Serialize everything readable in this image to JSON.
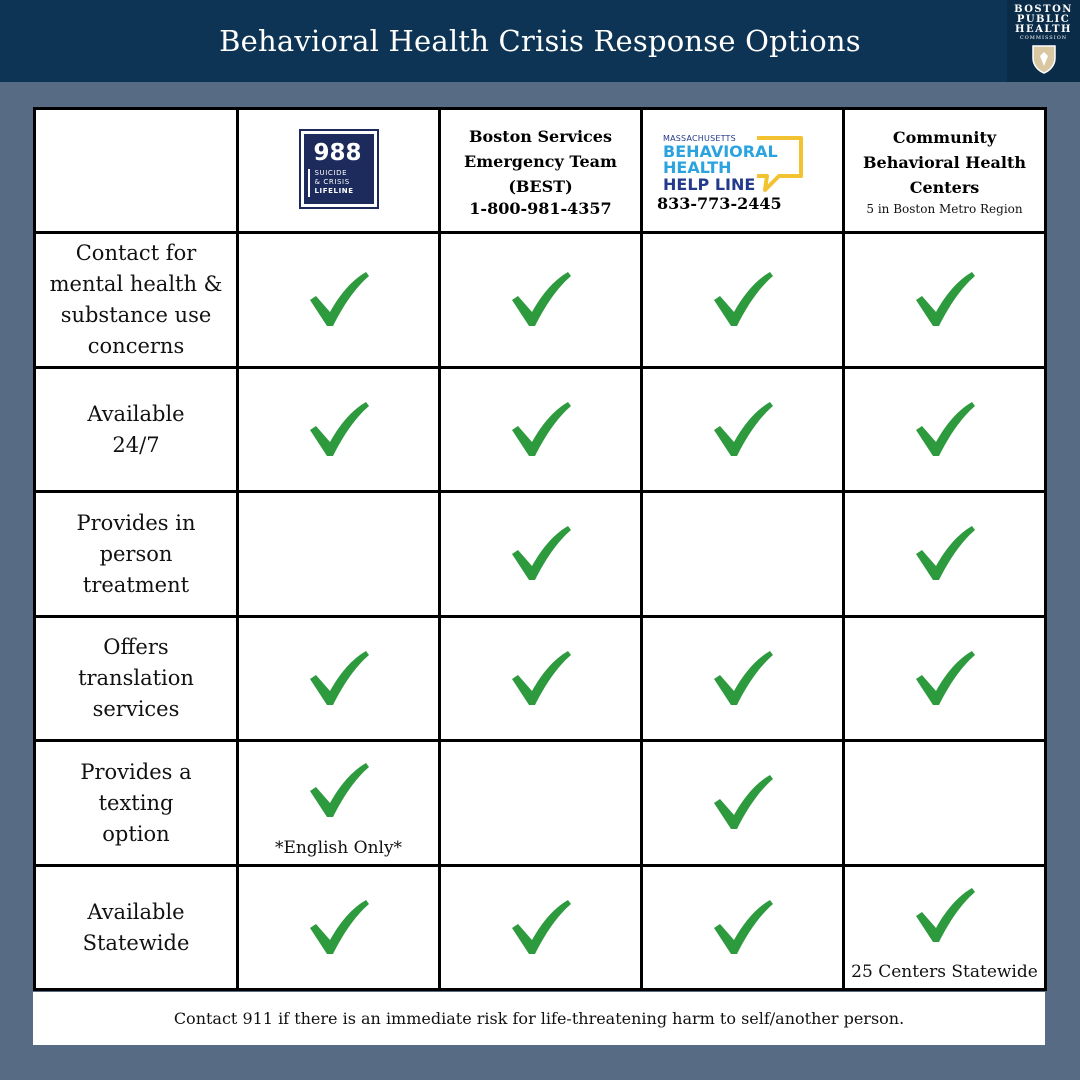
{
  "header": {
    "title": "Behavioral Health Crisis Response Options",
    "logo_lines": [
      "BOSTON",
      "PUBLIC",
      "HEALTH",
      "COMMISSION"
    ]
  },
  "columns": [
    {
      "key": "988",
      "logo": {
        "number": "988",
        "line1": "SUICIDE",
        "line2": "& CRISIS",
        "line3": "LIFELINE"
      }
    },
    {
      "key": "best",
      "title": "Boston Services\nEmergency Team\n(BEST)",
      "phone": "1-800-981-4357"
    },
    {
      "key": "mbhhl",
      "logo": {
        "state": "MASSACHUSETTS",
        "line1": "BEHAVIORAL",
        "line2": "HEALTH",
        "line3": "HELP LINE"
      },
      "phone": "833-773-2445"
    },
    {
      "key": "cbhc",
      "title": "Community\nBehavioral Health\nCenters",
      "subtitle": "5 in Boston Metro Region"
    }
  ],
  "rows": [
    {
      "label": "Contact for\nmental health &\nsubstance use\nconcerns",
      "checks": [
        true,
        true,
        true,
        true
      ],
      "notes": [
        "",
        "",
        "",
        ""
      ]
    },
    {
      "label": "Available\n24/7",
      "checks": [
        true,
        true,
        true,
        true
      ],
      "notes": [
        "",
        "",
        "",
        ""
      ]
    },
    {
      "label": "Provides in\nperson\ntreatment",
      "checks": [
        false,
        true,
        false,
        true
      ],
      "notes": [
        "",
        "",
        "",
        ""
      ]
    },
    {
      "label": "Offers\ntranslation\nservices",
      "checks": [
        true,
        true,
        true,
        true
      ],
      "notes": [
        "",
        "",
        "",
        ""
      ]
    },
    {
      "label": "Provides a\ntexting\noption",
      "checks": [
        true,
        false,
        true,
        false
      ],
      "notes": [
        "*English Only*",
        "",
        "",
        ""
      ]
    },
    {
      "label": "Available\nStatewide",
      "checks": [
        true,
        true,
        true,
        true
      ],
      "notes": [
        "",
        "",
        "",
        "25 Centers Statewide"
      ]
    }
  ],
  "footer": {
    "text": "Contact 911 if there is an immediate risk for life-threatening harm to self/another person."
  },
  "colors": {
    "background": "#576b85",
    "header": "#0e3455",
    "check": "#2e9a3e",
    "logo_988": "#1c2a5c",
    "mbhhl_blue": "#2aa3de",
    "mbhhl_navy": "#243a8c",
    "mbhhl_bubble": "#f2c230"
  },
  "icons": {
    "check": "check-mark-icon",
    "shield": "shield-icon"
  }
}
